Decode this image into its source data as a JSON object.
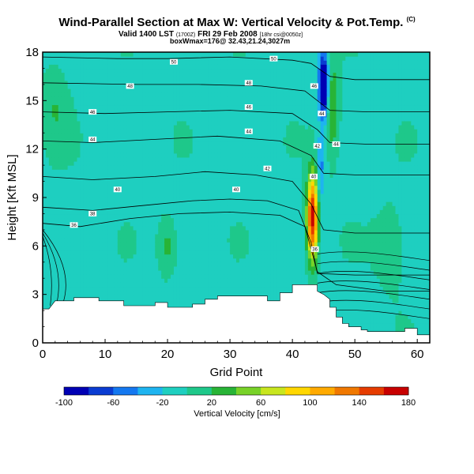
{
  "header": {
    "title": "Wind-Parallel Section at Max W: Vertical Velocity & Pot.Temp.",
    "title_mark": "(C)",
    "valid_line": "Valid 1400 LST",
    "valid_utc": "(1700Z)",
    "valid_date": "FRI 29 Feb 2008",
    "valid_note": "[18hr csi@0050z]",
    "box_line": "boxWmax=176@ 32.43,21.24,3027m"
  },
  "chart_data": {
    "type": "heatmap",
    "xlabel": "Grid Point",
    "ylabel": "Height [Kft MSL]",
    "xlim": [
      0,
      62
    ],
    "ylim": [
      0,
      18
    ],
    "x_ticks": [
      0,
      10,
      20,
      30,
      40,
      50,
      60
    ],
    "y_ticks": [
      0,
      3,
      6,
      9,
      12,
      15,
      18
    ],
    "colorbar": {
      "label": "Vertical Velocity [cm/s]",
      "ticks": [
        -100,
        -60,
        -20,
        20,
        60,
        100,
        140,
        180
      ],
      "bins": [
        -100,
        -80,
        -60,
        -40,
        -20,
        0,
        20,
        40,
        60,
        80,
        100,
        120,
        140,
        160,
        180
      ],
      "colors": [
        "#0000b4",
        "#0a3cd2",
        "#1478f0",
        "#1eb4f0",
        "#1ecfc0",
        "#1ec88a",
        "#28b436",
        "#78d228",
        "#c8e61e",
        "#ffd700",
        "#ffaa00",
        "#f07800",
        "#e63c00",
        "#c80000"
      ]
    },
    "terrain": [
      [
        0,
        2.1
      ],
      [
        1,
        2.1
      ],
      [
        2,
        2.6
      ],
      [
        5,
        2.6
      ],
      [
        5,
        2.8
      ],
      [
        9,
        2.8
      ],
      [
        9,
        2.6
      ],
      [
        13,
        2.6
      ],
      [
        13,
        2.3
      ],
      [
        18,
        2.3
      ],
      [
        18,
        2.5
      ],
      [
        20,
        2.5
      ],
      [
        20,
        2.2
      ],
      [
        24,
        2.2
      ],
      [
        24,
        2.4
      ],
      [
        26,
        2.4
      ],
      [
        26,
        2.7
      ],
      [
        28,
        2.7
      ],
      [
        28,
        2.9
      ],
      [
        36,
        2.9
      ],
      [
        36,
        2.6
      ],
      [
        38,
        2.6
      ],
      [
        38,
        3.1
      ],
      [
        40,
        3.1
      ],
      [
        40,
        3.6
      ],
      [
        44,
        3.6
      ],
      [
        44,
        3.2
      ],
      [
        45,
        3.0
      ],
      [
        46,
        2.7
      ],
      [
        46,
        2.2
      ],
      [
        47,
        2.2
      ],
      [
        47,
        1.6
      ],
      [
        48,
        1.6
      ],
      [
        48,
        1.2
      ],
      [
        49,
        1.2
      ],
      [
        49,
        1.0
      ],
      [
        51,
        1.0
      ],
      [
        51,
        0.8
      ],
      [
        52,
        0.8
      ],
      [
        52,
        0.7
      ],
      [
        58,
        0.7
      ],
      [
        58,
        0.9
      ],
      [
        60,
        0.9
      ],
      [
        60,
        0.5
      ],
      [
        62,
        0.5
      ]
    ],
    "isentropes": [
      {
        "label": "50",
        "points": [
          [
            0,
            17.7
          ],
          [
            12,
            17.6
          ],
          [
            20,
            17.6
          ],
          [
            30,
            17.7
          ],
          [
            40,
            17.5
          ],
          [
            43,
            17.3
          ],
          [
            46,
            16.5
          ],
          [
            50,
            16.3
          ],
          [
            62,
            16.3
          ]
        ]
      },
      {
        "label": "48",
        "points": [
          [
            0,
            16.1
          ],
          [
            15,
            16.0
          ],
          [
            25,
            16.0
          ],
          [
            35,
            15.9
          ],
          [
            42,
            15.6
          ],
          [
            44,
            15.0
          ],
          [
            46,
            14.4
          ],
          [
            52,
            14.3
          ],
          [
            62,
            14.3
          ]
        ]
      },
      {
        "label": "46",
        "points": [
          [
            0,
            14.3
          ],
          [
            10,
            14.2
          ],
          [
            20,
            14.3
          ],
          [
            30,
            14.4
          ],
          [
            40,
            14.2
          ],
          [
            44,
            13.2
          ],
          [
            46,
            12.4
          ],
          [
            52,
            12.3
          ],
          [
            62,
            12.3
          ]
        ]
      },
      {
        "label": "44",
        "points": [
          [
            0,
            12.5
          ],
          [
            8,
            12.4
          ],
          [
            18,
            12.6
          ],
          [
            28,
            12.8
          ],
          [
            38,
            12.5
          ],
          [
            43,
            11.6
          ],
          [
            45,
            10.5
          ],
          [
            50,
            10.4
          ],
          [
            62,
            10.4
          ]
        ]
      },
      {
        "label": "40",
        "points": [
          [
            0,
            10.3
          ],
          [
            8,
            10.1
          ],
          [
            18,
            10.3
          ],
          [
            26,
            10.6
          ],
          [
            34,
            10.4
          ],
          [
            40,
            10.0
          ],
          [
            43,
            8.6
          ],
          [
            45,
            7.0
          ],
          [
            50,
            6.8
          ],
          [
            62,
            6.8
          ]
        ]
      },
      {
        "label": "36",
        "points": [
          [
            0,
            8.4
          ],
          [
            8,
            8.2
          ],
          [
            16,
            8.5
          ],
          [
            24,
            8.8
          ],
          [
            30,
            8.9
          ],
          [
            36,
            8.8
          ],
          [
            41,
            8.2
          ],
          [
            43,
            6.2
          ],
          [
            44,
            4.3
          ],
          [
            50,
            4.2
          ],
          [
            62,
            4.2
          ]
        ]
      },
      {
        "label": "34",
        "points": [
          [
            0,
            7.4
          ],
          [
            6,
            7.2
          ],
          [
            14,
            7.7
          ],
          [
            22,
            8.0
          ],
          [
            30,
            8.1
          ],
          [
            38,
            7.9
          ],
          [
            42,
            7.2
          ],
          [
            44,
            4.4
          ],
          [
            47,
            3.6
          ],
          [
            55,
            3.2
          ],
          [
            62,
            3.2
          ]
        ]
      }
    ],
    "labels_drawn": [
      {
        "text": "50",
        "x": 21,
        "y": 17.4
      },
      {
        "text": "50",
        "x": 37,
        "y": 17.6
      },
      {
        "text": "48",
        "x": 14,
        "y": 15.9
      },
      {
        "text": "48",
        "x": 33,
        "y": 16.1
      },
      {
        "text": "46",
        "x": 8,
        "y": 14.3
      },
      {
        "text": "46",
        "x": 33,
        "y": 14.6
      },
      {
        "text": "44",
        "x": 8,
        "y": 12.6
      },
      {
        "text": "44",
        "x": 33,
        "y": 13.1
      },
      {
        "text": "42",
        "x": 36,
        "y": 10.8
      },
      {
        "text": "40",
        "x": 12,
        "y": 9.5
      },
      {
        "text": "40",
        "x": 31,
        "y": 9.5
      },
      {
        "text": "38",
        "x": 8,
        "y": 8.0
      },
      {
        "text": "36",
        "x": 5,
        "y": 7.3
      },
      {
        "text": "46",
        "x": 43.5,
        "y": 15.9
      },
      {
        "text": "44",
        "x": 44.7,
        "y": 14.2
      },
      {
        "text": "42",
        "x": 44,
        "y": 12.2
      },
      {
        "text": "40",
        "x": 43.4,
        "y": 10.3
      },
      {
        "text": "44",
        "x": 47,
        "y": 12.3
      },
      {
        "text": "36",
        "x": 43.6,
        "y": 5.8
      }
    ]
  }
}
